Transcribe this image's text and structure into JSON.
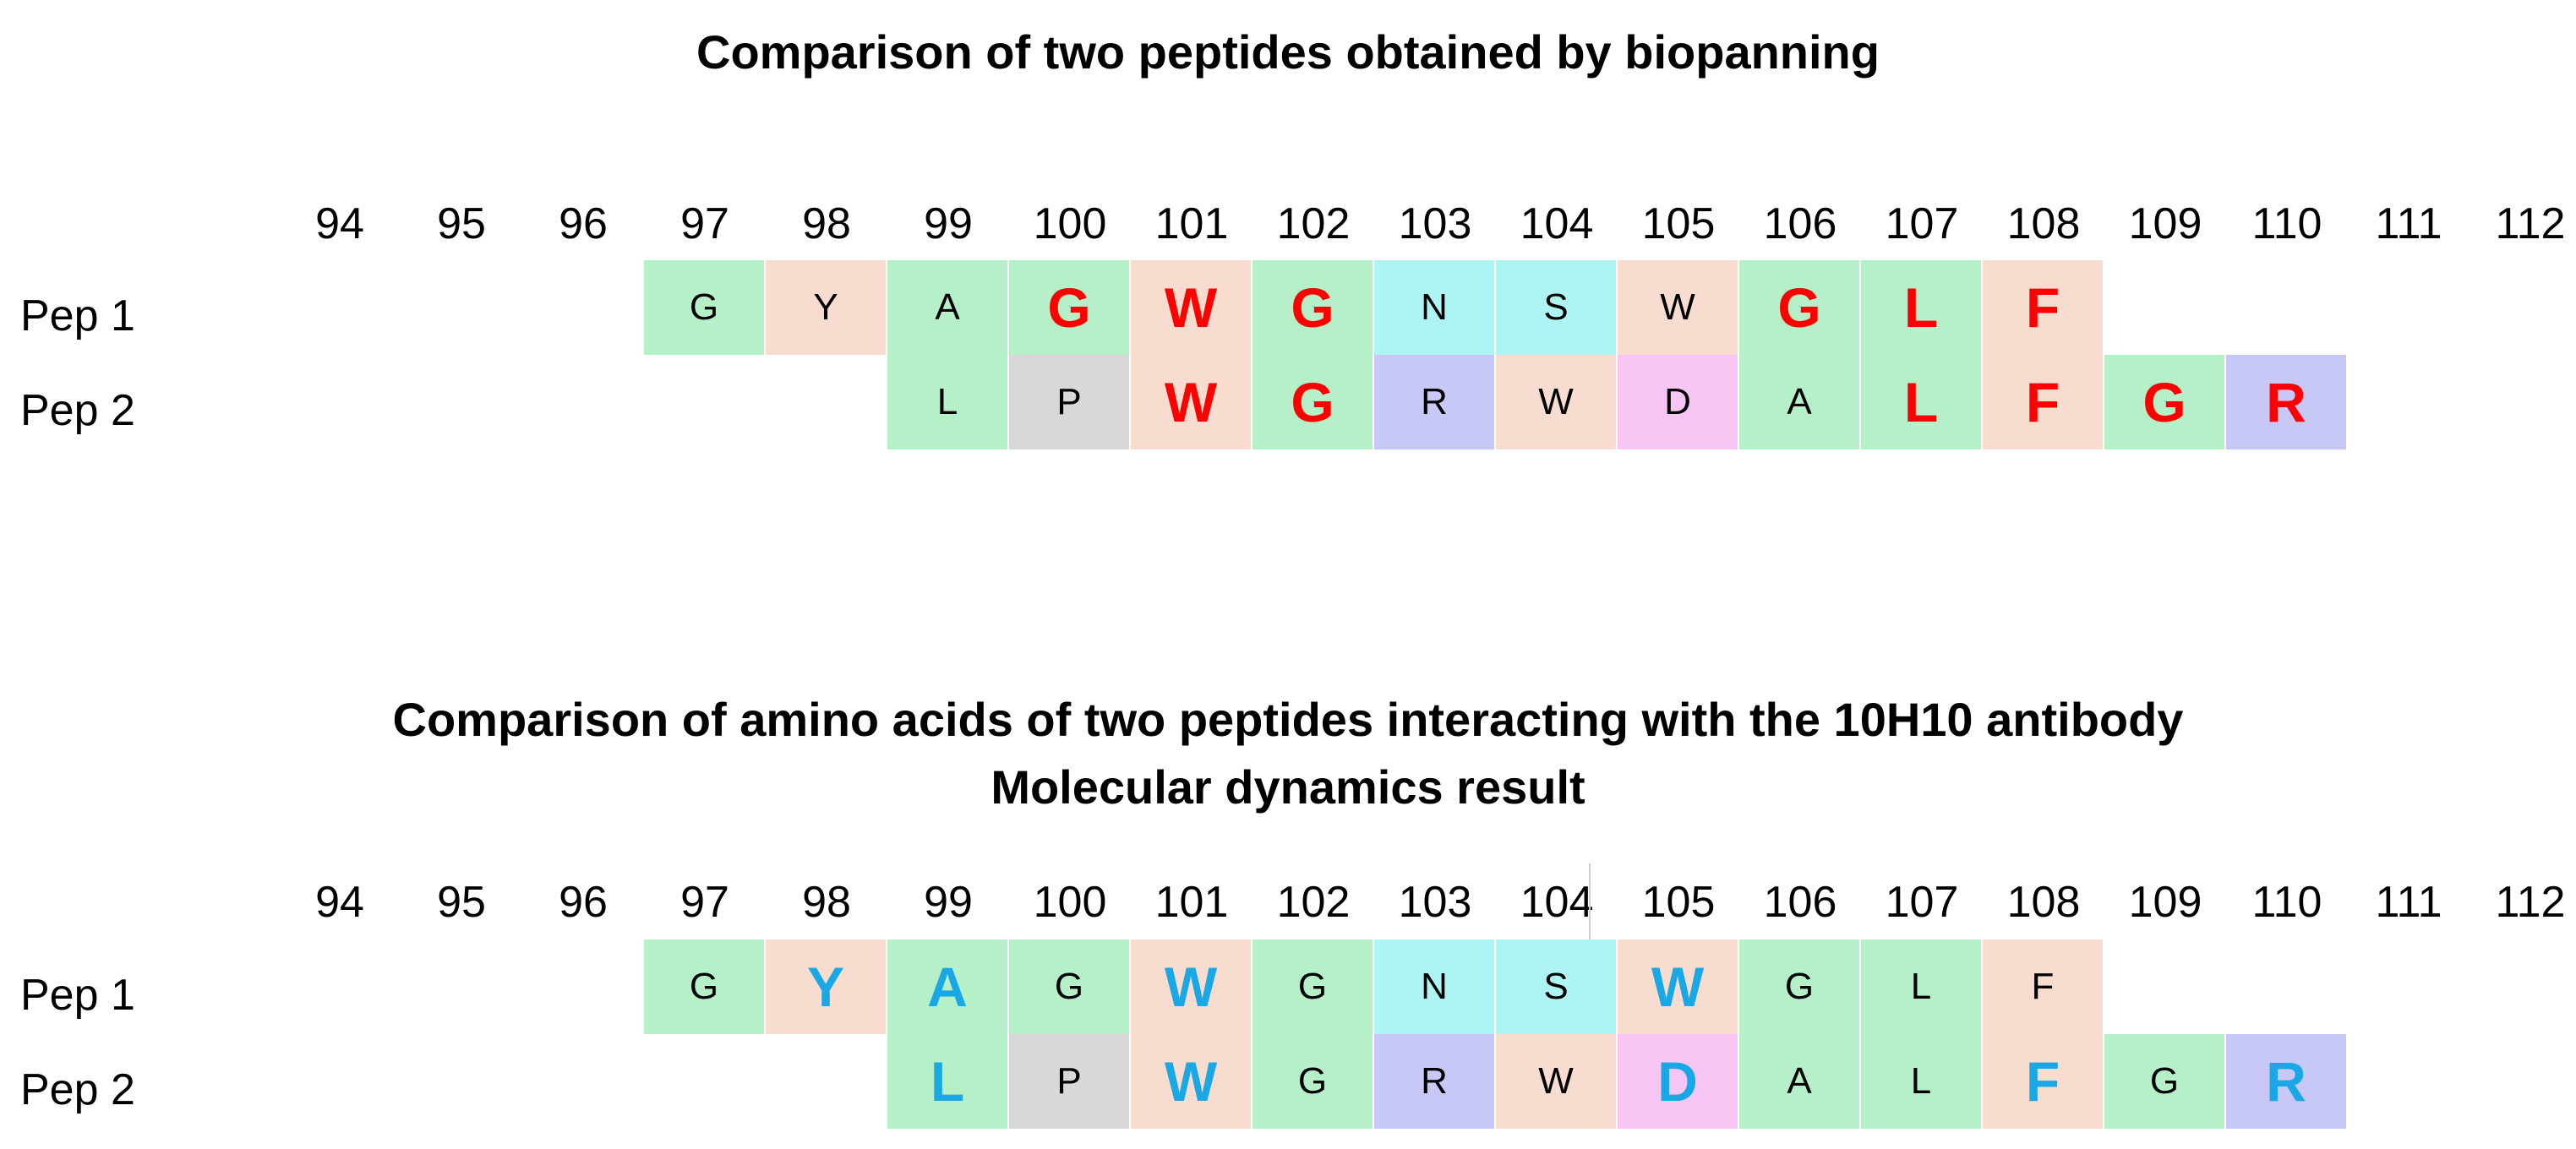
{
  "colors": {
    "green": "#b5f0c9",
    "peach": "#f9dcd0",
    "cyan": "#aef4f4",
    "gray": "#d8d8d8",
    "lavender": "#c8c8f6",
    "pink": "#f7c6f5",
    "highlight_top": "#ff0000",
    "highlight_bottom": "#1aa7e6",
    "normal_text": "#000000"
  },
  "positions": [
    "94",
    "95",
    "96",
    "97",
    "98",
    "99",
    "100",
    "101",
    "102",
    "103",
    "104",
    "105",
    "106",
    "107",
    "108",
    "109",
    "110",
    "111",
    "112"
  ],
  "panels": [
    {
      "title": "Comparison of two peptides obtained by biopanning",
      "peptides": [
        {
          "label": "Pep 1",
          "residues": [
            {
              "col": 3,
              "aa": "G",
              "bg": "green",
              "hl": false
            },
            {
              "col": 4,
              "aa": "Y",
              "bg": "peach",
              "hl": false
            },
            {
              "col": 5,
              "aa": "A",
              "bg": "green",
              "hl": false
            },
            {
              "col": 6,
              "aa": "G",
              "bg": "green",
              "hl": true
            },
            {
              "col": 7,
              "aa": "W",
              "bg": "peach",
              "hl": true
            },
            {
              "col": 8,
              "aa": "G",
              "bg": "green",
              "hl": true
            },
            {
              "col": 9,
              "aa": "N",
              "bg": "cyan",
              "hl": false
            },
            {
              "col": 10,
              "aa": "S",
              "bg": "cyan",
              "hl": false
            },
            {
              "col": 11,
              "aa": "W",
              "bg": "peach",
              "hl": false
            },
            {
              "col": 12,
              "aa": "G",
              "bg": "green",
              "hl": true
            },
            {
              "col": 13,
              "aa": "L",
              "bg": "green",
              "hl": true
            },
            {
              "col": 14,
              "aa": "F",
              "bg": "peach",
              "hl": true
            }
          ]
        },
        {
          "label": "Pep 2",
          "residues": [
            {
              "col": 5,
              "aa": "L",
              "bg": "green",
              "hl": false
            },
            {
              "col": 6,
              "aa": "P",
              "bg": "gray",
              "hl": false
            },
            {
              "col": 7,
              "aa": "W",
              "bg": "peach",
              "hl": true
            },
            {
              "col": 8,
              "aa": "G",
              "bg": "green",
              "hl": true
            },
            {
              "col": 9,
              "aa": "R",
              "bg": "lavender",
              "hl": false
            },
            {
              "col": 10,
              "aa": "W",
              "bg": "peach",
              "hl": false
            },
            {
              "col": 11,
              "aa": "D",
              "bg": "pink",
              "hl": false
            },
            {
              "col": 12,
              "aa": "A",
              "bg": "green",
              "hl": false
            },
            {
              "col": 13,
              "aa": "L",
              "bg": "green",
              "hl": true
            },
            {
              "col": 14,
              "aa": "F",
              "bg": "peach",
              "hl": true
            },
            {
              "col": 15,
              "aa": "G",
              "bg": "green",
              "hl": true
            },
            {
              "col": 16,
              "aa": "R",
              "bg": "lavender",
              "hl": true
            }
          ]
        }
      ]
    },
    {
      "title_lines": [
        "Comparison of amino acids of two peptides interacting with the 10H10 antibody",
        "Molecular dynamics result"
      ],
      "peptides": [
        {
          "label": "Pep 1",
          "residues": [
            {
              "col": 3,
              "aa": "G",
              "bg": "green",
              "hl": false
            },
            {
              "col": 4,
              "aa": "Y",
              "bg": "peach",
              "hl": true
            },
            {
              "col": 5,
              "aa": "A",
              "bg": "green",
              "hl": true
            },
            {
              "col": 6,
              "aa": "G",
              "bg": "green",
              "hl": false
            },
            {
              "col": 7,
              "aa": "W",
              "bg": "peach",
              "hl": true
            },
            {
              "col": 8,
              "aa": "G",
              "bg": "green",
              "hl": false
            },
            {
              "col": 9,
              "aa": "N",
              "bg": "cyan",
              "hl": false
            },
            {
              "col": 10,
              "aa": "S",
              "bg": "cyan",
              "hl": false
            },
            {
              "col": 11,
              "aa": "W",
              "bg": "peach",
              "hl": true
            },
            {
              "col": 12,
              "aa": "G",
              "bg": "green",
              "hl": false
            },
            {
              "col": 13,
              "aa": "L",
              "bg": "green",
              "hl": false
            },
            {
              "col": 14,
              "aa": "F",
              "bg": "peach",
              "hl": false
            }
          ]
        },
        {
          "label": "Pep 2",
          "residues": [
            {
              "col": 5,
              "aa": "L",
              "bg": "green",
              "hl": true
            },
            {
              "col": 6,
              "aa": "P",
              "bg": "gray",
              "hl": false
            },
            {
              "col": 7,
              "aa": "W",
              "bg": "peach",
              "hl": true
            },
            {
              "col": 8,
              "aa": "G",
              "bg": "green",
              "hl": false
            },
            {
              "col": 9,
              "aa": "R",
              "bg": "lavender",
              "hl": false
            },
            {
              "col": 10,
              "aa": "W",
              "bg": "peach",
              "hl": false
            },
            {
              "col": 11,
              "aa": "D",
              "bg": "pink",
              "hl": true
            },
            {
              "col": 12,
              "aa": "A",
              "bg": "green",
              "hl": false
            },
            {
              "col": 13,
              "aa": "L",
              "bg": "green",
              "hl": false
            },
            {
              "col": 14,
              "aa": "F",
              "bg": "peach",
              "hl": true
            },
            {
              "col": 15,
              "aa": "G",
              "bg": "green",
              "hl": false
            },
            {
              "col": 16,
              "aa": "R",
              "bg": "lavender",
              "hl": true
            }
          ]
        }
      ]
    }
  ]
}
